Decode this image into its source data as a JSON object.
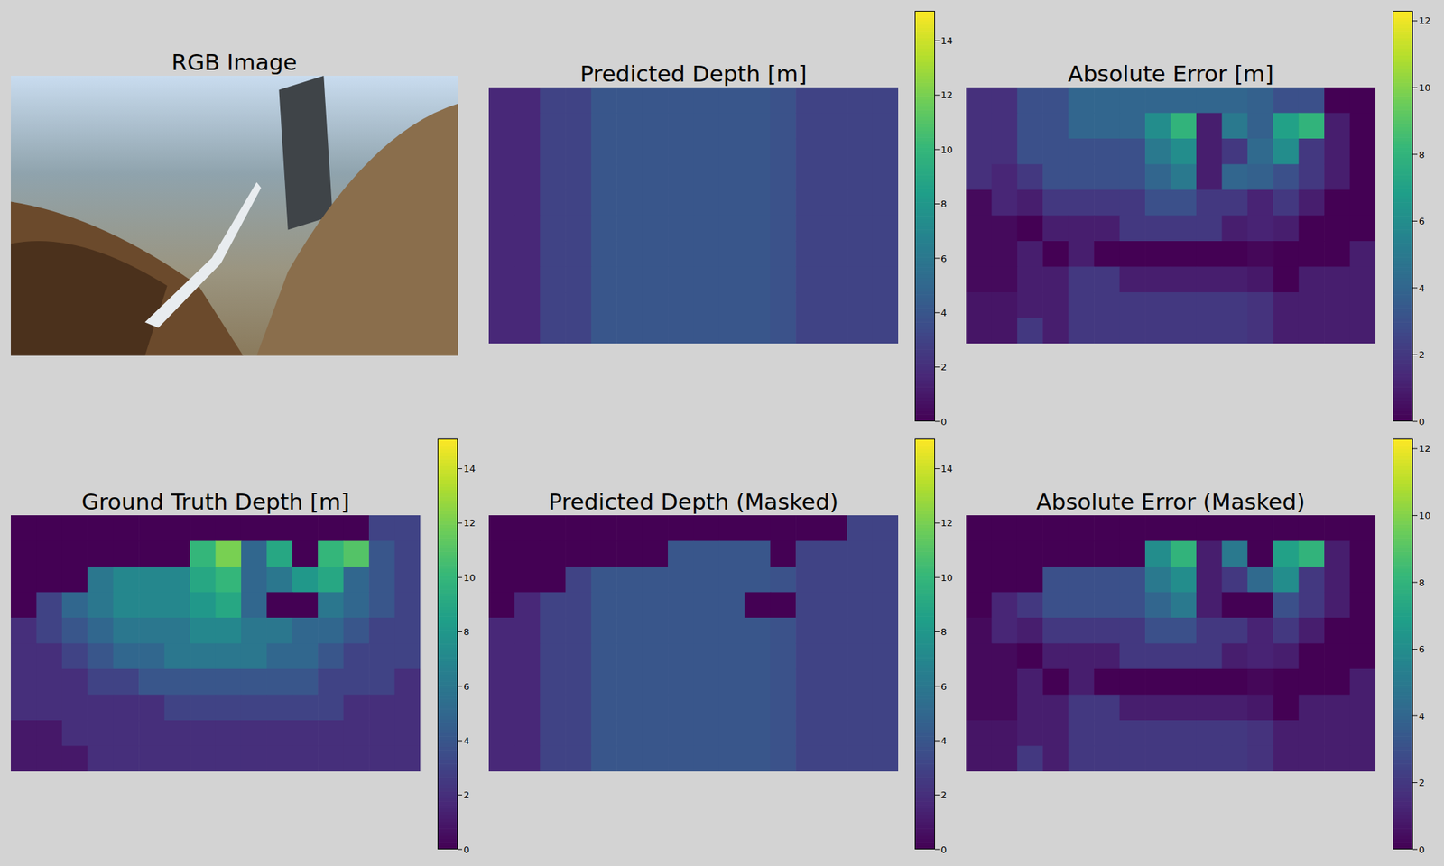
{
  "chart_data": [
    {
      "type": "image",
      "title": "RGB Image"
    },
    {
      "type": "heatmap",
      "title": "Predicted Depth [m]",
      "tick_labels": false,
      "color_range": [
        0,
        15.1
      ],
      "color_ticks": [
        0,
        2,
        4,
        6,
        8,
        10,
        12,
        14
      ],
      "cells": [
        [
          1.7,
          1.7,
          3,
          3,
          4,
          4,
          4,
          4,
          4,
          4,
          4,
          3.8,
          3,
          3,
          3,
          3
        ],
        [
          1.7,
          1.7,
          3,
          3,
          4,
          4,
          4,
          4,
          4,
          4,
          4,
          3.8,
          3,
          3,
          3,
          3
        ],
        [
          1.7,
          1.7,
          3,
          3,
          4,
          4,
          4,
          4,
          4,
          4,
          4,
          3.8,
          3,
          3,
          3,
          3
        ],
        [
          1.7,
          1.7,
          3,
          3,
          4,
          4,
          4,
          4,
          4,
          4,
          4,
          3.8,
          3,
          3,
          3,
          3
        ],
        [
          1.7,
          1.7,
          3,
          3,
          4,
          4,
          4,
          4,
          4,
          4,
          4,
          3.8,
          3,
          3,
          3,
          3
        ],
        [
          1.7,
          1.7,
          3,
          3,
          4,
          4,
          4,
          4,
          4,
          4,
          4,
          3.8,
          3,
          3,
          3,
          3
        ],
        [
          1.7,
          1.7,
          3,
          3,
          4,
          4,
          4,
          4,
          4,
          4,
          4,
          3.8,
          3,
          3,
          3,
          3
        ],
        [
          1.7,
          1.7,
          3,
          3,
          4,
          4,
          4,
          4,
          4,
          4,
          4,
          3.8,
          3,
          3,
          3,
          3
        ],
        [
          1.7,
          1.7,
          3,
          3,
          4,
          4,
          4,
          4,
          4,
          4,
          4,
          3.8,
          3,
          3,
          3,
          3
        ],
        [
          1.7,
          1.7,
          3,
          3,
          4,
          4,
          4,
          4,
          4,
          4,
          4,
          3.8,
          3,
          3,
          3,
          3
        ]
      ]
    },
    {
      "type": "heatmap",
      "title": "Absolute Error [m]",
      "tick_labels": false,
      "color_range": [
        0,
        12.3
      ],
      "color_ticks": [
        0,
        2,
        4,
        6,
        8,
        10,
        12
      ],
      "cells": [
        [
          1.7,
          1.7,
          3,
          3,
          4,
          4,
          4,
          4,
          4,
          4,
          4,
          3.8,
          3,
          3,
          0,
          0
        ],
        [
          1.7,
          1.7,
          3,
          3,
          4,
          4,
          4,
          6,
          8,
          1,
          5,
          3.8,
          7,
          8,
          1,
          0
        ],
        [
          1.7,
          1.7,
          3,
          3,
          3,
          3,
          3,
          5,
          6,
          1,
          2,
          4.2,
          6,
          2,
          1,
          0
        ],
        [
          1.7,
          1.3,
          2,
          3,
          3,
          3,
          3,
          4,
          5,
          1,
          4,
          3.8,
          3,
          2,
          1,
          0
        ],
        [
          0.3,
          1.3,
          1,
          2,
          2,
          2,
          2,
          3,
          3,
          2,
          2,
          1.2,
          2,
          1,
          0,
          0
        ],
        [
          0.3,
          0.3,
          0,
          1,
          1,
          1,
          2,
          2,
          2,
          2,
          1,
          1.2,
          1,
          0,
          0,
          0
        ],
        [
          0.3,
          0.3,
          1,
          0,
          1,
          0,
          0,
          0,
          0,
          0,
          0,
          0.2,
          0,
          0,
          0,
          1
        ],
        [
          0.3,
          0.3,
          1,
          1,
          2,
          2,
          1,
          1,
          1,
          1,
          1,
          0.8,
          0,
          1,
          1,
          1
        ],
        [
          0.7,
          0.7,
          1,
          1,
          2,
          2,
          2,
          2,
          2,
          2,
          2,
          1.8,
          1,
          1,
          1,
          1
        ],
        [
          0.7,
          0.7,
          2,
          1,
          2,
          2,
          2,
          2,
          2,
          2,
          2,
          1.8,
          1,
          1,
          1,
          1
        ]
      ]
    },
    {
      "type": "heatmap",
      "title": "Ground Truth Depth [m]",
      "tick_labels": false,
      "color_range": [
        0,
        15.1
      ],
      "color_ticks": [
        0,
        2,
        4,
        6,
        8,
        10,
        12,
        14
      ],
      "cells": [
        [
          0,
          0,
          0,
          0,
          0,
          0,
          0,
          0,
          0,
          0,
          0,
          0,
          0,
          0,
          3,
          3
        ],
        [
          0,
          0,
          0,
          0,
          0,
          0,
          0,
          10,
          12,
          5,
          9,
          0,
          10,
          11,
          4,
          3
        ],
        [
          0,
          0,
          0,
          6,
          7,
          7,
          7,
          9,
          10,
          5,
          6,
          8,
          9,
          5,
          4,
          3
        ],
        [
          0,
          3,
          5,
          6,
          7,
          7,
          7,
          8,
          9,
          5,
          0,
          0,
          6,
          5,
          4,
          3
        ],
        [
          2,
          3,
          4,
          5,
          6,
          6,
          6,
          7,
          7,
          6,
          6,
          5,
          5,
          4,
          3,
          3
        ],
        [
          2,
          2,
          3,
          4,
          5,
          5,
          6,
          6,
          6,
          6,
          5,
          5,
          4,
          3,
          3,
          3
        ],
        [
          2,
          2,
          2,
          3,
          3,
          4,
          4,
          4,
          4,
          4,
          4,
          4,
          3,
          3,
          3,
          2
        ],
        [
          2,
          2,
          2,
          2,
          2,
          2,
          3,
          3,
          3,
          3,
          3,
          3,
          3,
          2,
          2,
          2
        ],
        [
          1,
          1,
          2,
          2,
          2,
          2,
          2,
          2,
          2,
          2,
          2,
          2,
          2,
          2,
          2,
          2
        ],
        [
          1,
          1,
          1,
          2,
          2,
          2,
          2,
          2,
          2,
          2,
          2,
          2,
          2,
          2,
          2,
          2
        ]
      ]
    },
    {
      "type": "heatmap",
      "title": "Predicted Depth (Masked)",
      "tick_labels": false,
      "color_range": [
        0,
        15.1
      ],
      "color_ticks": [
        0,
        2,
        4,
        6,
        8,
        10,
        12,
        14
      ],
      "cells": [
        [
          0,
          0,
          0,
          0,
          0,
          0,
          0,
          0,
          0,
          0,
          0,
          0,
          0,
          0,
          3,
          3
        ],
        [
          0,
          0,
          0,
          0,
          0,
          0,
          0,
          4,
          4,
          4,
          4,
          0,
          3,
          3,
          3,
          3
        ],
        [
          0,
          0,
          0,
          3,
          4,
          4,
          4,
          4,
          4,
          4,
          4,
          3.8,
          3,
          3,
          3,
          3
        ],
        [
          0,
          1.7,
          3,
          3,
          4,
          4,
          4,
          4,
          4,
          4,
          0,
          0,
          3,
          3,
          3,
          3
        ],
        [
          1.7,
          1.7,
          3,
          3,
          4,
          4,
          4,
          4,
          4,
          4,
          4,
          3.8,
          3,
          3,
          3,
          3
        ],
        [
          1.7,
          1.7,
          3,
          3,
          4,
          4,
          4,
          4,
          4,
          4,
          4,
          3.8,
          3,
          3,
          3,
          3
        ],
        [
          1.7,
          1.7,
          3,
          3,
          4,
          4,
          4,
          4,
          4,
          4,
          4,
          3.8,
          3,
          3,
          3,
          3
        ],
        [
          1.7,
          1.7,
          3,
          3,
          4,
          4,
          4,
          4,
          4,
          4,
          4,
          3.8,
          3,
          3,
          3,
          3
        ],
        [
          1.7,
          1.7,
          3,
          3,
          4,
          4,
          4,
          4,
          4,
          4,
          4,
          3.8,
          3,
          3,
          3,
          3
        ],
        [
          1.7,
          1.7,
          3,
          3,
          4,
          4,
          4,
          4,
          4,
          4,
          4,
          3.8,
          3,
          3,
          3,
          3
        ]
      ]
    },
    {
      "type": "heatmap",
      "title": "Absolute Error (Masked)",
      "tick_labels": false,
      "color_range": [
        0,
        12.3
      ],
      "color_ticks": [
        0,
        2,
        4,
        6,
        8,
        10,
        12
      ],
      "cells": [
        [
          0,
          0,
          0,
          0,
          0,
          0,
          0,
          0,
          0,
          0,
          0,
          0,
          0,
          0,
          0,
          0
        ],
        [
          0,
          0,
          0,
          0,
          0,
          0,
          0,
          6,
          8,
          1,
          5,
          0,
          7,
          8,
          1,
          0
        ],
        [
          0,
          0,
          0,
          3,
          3,
          3,
          3,
          5,
          6,
          1,
          2,
          4.2,
          6,
          2,
          1,
          0
        ],
        [
          0,
          1.3,
          2,
          3,
          3,
          3,
          3,
          4,
          5,
          1,
          0,
          0,
          3,
          2,
          1,
          0
        ],
        [
          0.3,
          1.3,
          1,
          2,
          2,
          2,
          2,
          3,
          3,
          2,
          2,
          1.2,
          2,
          1,
          0,
          0
        ],
        [
          0.3,
          0.3,
          0,
          1,
          1,
          1,
          2,
          2,
          2,
          2,
          1,
          1.2,
          1,
          0,
          0,
          0
        ],
        [
          0.3,
          0.3,
          1,
          0,
          1,
          0,
          0,
          0,
          0,
          0,
          0,
          0.2,
          0,
          0,
          0,
          1
        ],
        [
          0.3,
          0.3,
          1,
          1,
          2,
          2,
          1,
          1,
          1,
          1,
          1,
          0.8,
          0,
          1,
          1,
          1
        ],
        [
          0.7,
          0.7,
          1,
          1,
          2,
          2,
          2,
          2,
          2,
          2,
          2,
          1.8,
          1,
          1,
          1,
          1
        ],
        [
          0.7,
          0.7,
          2,
          1,
          2,
          2,
          2,
          2,
          2,
          2,
          2,
          1.8,
          1,
          1,
          1,
          1
        ]
      ]
    }
  ]
}
